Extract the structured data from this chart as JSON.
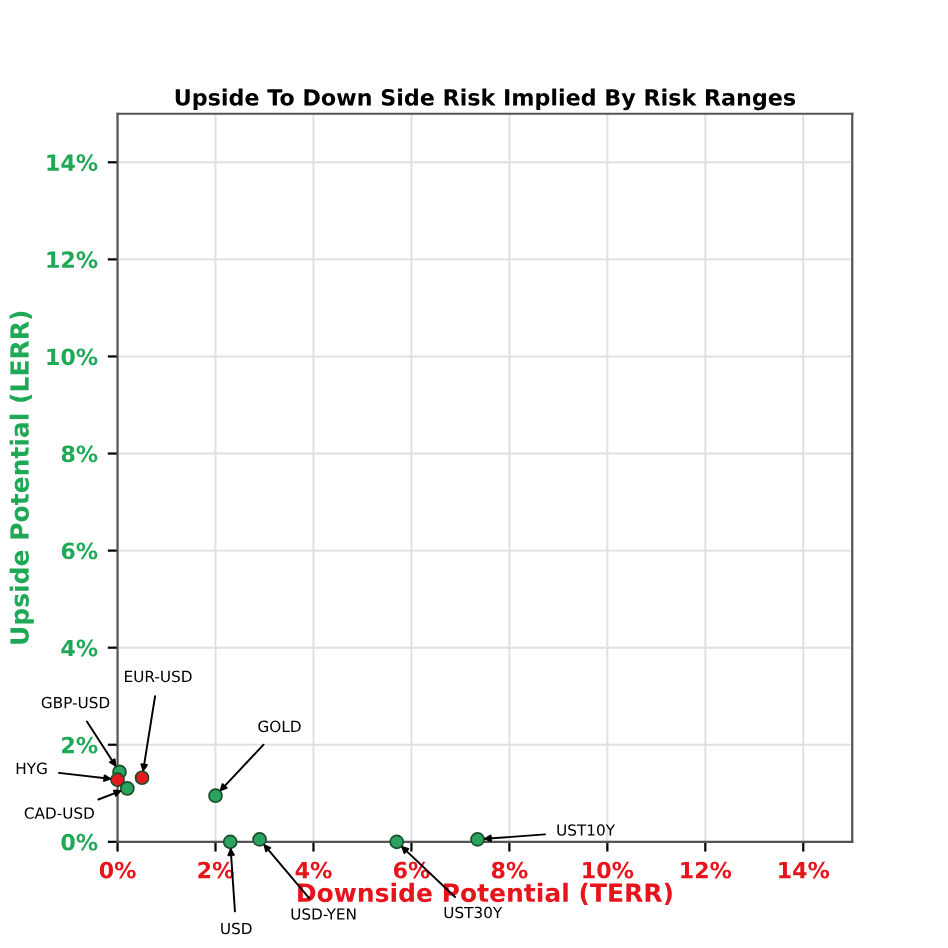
{
  "chart_data": {
    "type": "scatter",
    "title": "Upside To Down Side Risk Implied By Risk Ranges",
    "xlabel": "Downside Potential (TERR)",
    "ylabel": "Upside Potential (LERR)",
    "x": [
      0.04,
      0.0,
      0.5,
      0.2,
      2.0,
      2.3,
      2.9,
      5.7,
      7.35
    ],
    "values": [
      1.44,
      1.28,
      1.32,
      1.1,
      0.95,
      0,
      0.05,
      0,
      0.05
    ],
    "colors": [
      "#2ca25f",
      "#e31a1c",
      "#e31a1c",
      "#2ca25f",
      "#2ca25f",
      "#2ca25f",
      "#2ca25f",
      "#2ca25f",
      "#2ca25f"
    ],
    "annotations": [
      {
        "text": "GBP-USD",
        "x": 0.04,
        "y": 1.44
      },
      {
        "text": "HYG",
        "x": 0.0,
        "y": 1.28
      },
      {
        "text": "EUR-USD",
        "x": 0.5,
        "y": 1.32
      },
      {
        "text": "CAD-USD",
        "x": 0.2,
        "y": 1.1
      },
      {
        "text": "GOLD",
        "x": 2.0,
        "y": 0.95
      },
      {
        "text": "USD",
        "x": 2.3,
        "y": 0
      },
      {
        "text": "USD-YEN",
        "x": 2.9,
        "y": 0.05
      },
      {
        "text": "UST30Y",
        "x": 5.7,
        "y": 0
      },
      {
        "text": "UST10Y",
        "x": 7.35,
        "y": 0.05
      }
    ],
    "xlim": [
      0,
      15
    ],
    "ylim": [
      0,
      15
    ],
    "xticks": [
      {
        "value": 0,
        "label": "0%"
      },
      {
        "value": 2,
        "label": "2%"
      },
      {
        "value": 4,
        "label": "4%"
      },
      {
        "value": 6,
        "label": "6%"
      },
      {
        "value": 8,
        "label": "8%"
      },
      {
        "value": 10,
        "label": "10%"
      },
      {
        "value": 12,
        "label": "12%"
      },
      {
        "value": 14,
        "label": "14%"
      }
    ],
    "yticks": [
      {
        "value": 0,
        "label": "0%"
      },
      {
        "value": 2,
        "label": "2%"
      },
      {
        "value": 4,
        "label": "4%"
      },
      {
        "value": 6,
        "label": "6%"
      },
      {
        "value": 8,
        "label": "8%"
      },
      {
        "value": 10,
        "label": "10%"
      },
      {
        "value": 12,
        "label": "12%"
      },
      {
        "value": 14,
        "label": "14%"
      }
    ],
    "grid": true,
    "marker": "circle"
  }
}
